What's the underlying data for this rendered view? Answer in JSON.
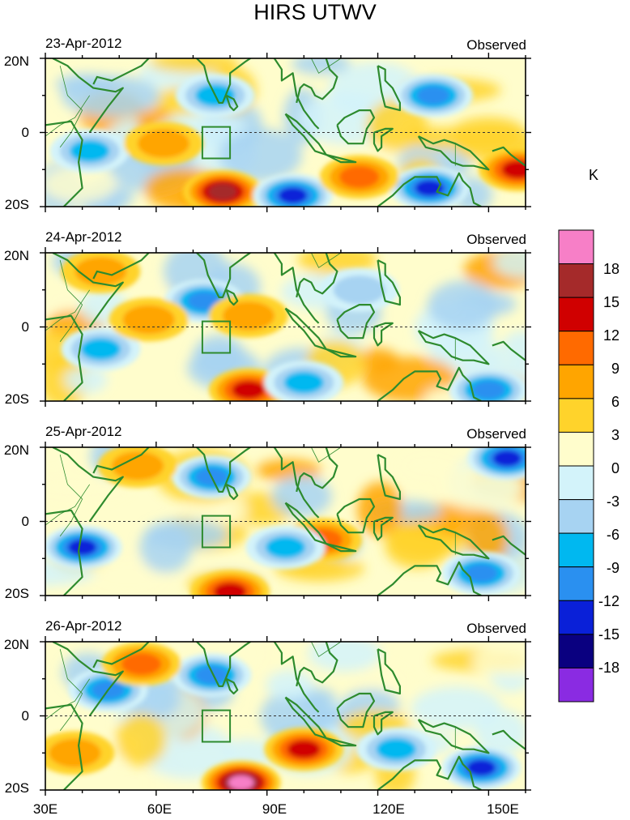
{
  "title": "HIRS UTWV",
  "panel_tag": "Observed",
  "colorbar": {
    "unit": "K",
    "tick_labels": [
      "18",
      "15",
      "12",
      "9",
      "6",
      "3",
      "0",
      "-3",
      "-6",
      "-9",
      "-12",
      "-15",
      "-18"
    ],
    "colors": [
      "#f77fc7",
      "#a52a2a",
      "#d00000",
      "#ff6a00",
      "#ffa500",
      "#ffd32b",
      "#fffdcc",
      "#d3f3fa",
      "#a7d3f2",
      "#00b8f0",
      "#2a90f0",
      "#0a20d8",
      "#0a0080",
      "#8a2be2"
    ]
  },
  "land_color": "#2e8b2e",
  "chart_data": [
    {
      "type": "heatmap",
      "date": "23-Apr-2012",
      "variable": "UTWV anomaly (observed)",
      "x_ticks": [
        "30E",
        "60E",
        "90E",
        "120E",
        "150E"
      ],
      "y_ticks": [
        "20N",
        "0",
        "20S"
      ],
      "xlim": [
        30,
        160
      ],
      "ylim": [
        -20,
        20
      ],
      "features": [
        {
          "lon": 78,
          "lat": -16,
          "value": 15,
          "note": "positive maximum"
        },
        {
          "lon": 76,
          "lat": 10,
          "value": -9
        },
        {
          "lon": 42,
          "lat": -5,
          "value": -9
        },
        {
          "lon": 97,
          "lat": -17,
          "value": -15
        },
        {
          "lon": 134,
          "lat": -15,
          "value": -15
        },
        {
          "lon": 135,
          "lat": 10,
          "value": -12
        },
        {
          "lon": 158,
          "lat": -10,
          "value": 12
        },
        {
          "lon": 62,
          "lat": -3,
          "value": 6
        },
        {
          "lon": 115,
          "lat": -12,
          "value": 9
        }
      ]
    },
    {
      "type": "heatmap",
      "date": "24-Apr-2012",
      "variable": "UTWV anomaly (observed)",
      "x_ticks": [
        "30E",
        "60E",
        "90E",
        "120E",
        "150E"
      ],
      "y_ticks": [
        "20N",
        "0",
        "20S"
      ],
      "xlim": [
        30,
        160
      ],
      "ylim": [
        -20,
        20
      ],
      "features": [
        {
          "lon": 85,
          "lat": -17,
          "value": 12,
          "note": "positive maximum"
        },
        {
          "lon": 73,
          "lat": 7,
          "value": -12
        },
        {
          "lon": 45,
          "lat": -6,
          "value": -9
        },
        {
          "lon": 100,
          "lat": -15,
          "value": -9
        },
        {
          "lon": 150,
          "lat": -17,
          "value": -12
        },
        {
          "lon": 115,
          "lat": 10,
          "value": -6
        },
        {
          "lon": 58,
          "lat": 2,
          "value": 6
        },
        {
          "lon": 85,
          "lat": 3,
          "value": 6
        },
        {
          "lon": 45,
          "lat": 15,
          "value": 6
        }
      ]
    },
    {
      "type": "heatmap",
      "date": "25-Apr-2012",
      "variable": "UTWV anomaly (observed)",
      "x_ticks": [
        "30E",
        "60E",
        "90E",
        "120E",
        "150E"
      ],
      "y_ticks": [
        "20N",
        "0",
        "20S"
      ],
      "xlim": [
        30,
        160
      ],
      "ylim": [
        -20,
        20
      ],
      "features": [
        {
          "lon": 80,
          "lat": -19,
          "value": 12,
          "note": "positive maximum"
        },
        {
          "lon": 40,
          "lat": -7,
          "value": -15
        },
        {
          "lon": 75,
          "lat": 12,
          "value": -12
        },
        {
          "lon": 155,
          "lat": 17,
          "value": -15
        },
        {
          "lon": 148,
          "lat": -14,
          "value": -12
        },
        {
          "lon": 105,
          "lat": -5,
          "value": 9
        },
        {
          "lon": 55,
          "lat": 15,
          "value": 6
        },
        {
          "lon": 95,
          "lat": -7,
          "value": -9
        }
      ]
    },
    {
      "type": "heatmap",
      "date": "26-Apr-2012",
      "variable": "UTWV anomaly (observed)",
      "x_ticks": [
        "30E",
        "60E",
        "90E",
        "120E",
        "150E"
      ],
      "y_ticks": [
        "20N",
        "0",
        "20S"
      ],
      "xlim": [
        30,
        160
      ],
      "ylim": [
        -20,
        20
      ],
      "features": [
        {
          "lon": 83,
          "lat": -18,
          "value": 18,
          "note": "positive maximum"
        },
        {
          "lon": 100,
          "lat": -9,
          "value": 12
        },
        {
          "lon": 75,
          "lat": 11,
          "value": -12
        },
        {
          "lon": 47,
          "lat": 7,
          "value": -12
        },
        {
          "lon": 148,
          "lat": -14,
          "value": -15
        },
        {
          "lon": 125,
          "lat": -9,
          "value": -9
        },
        {
          "lon": 56,
          "lat": 14,
          "value": 9
        },
        {
          "lon": 38,
          "lat": -10,
          "value": 6
        }
      ]
    }
  ]
}
